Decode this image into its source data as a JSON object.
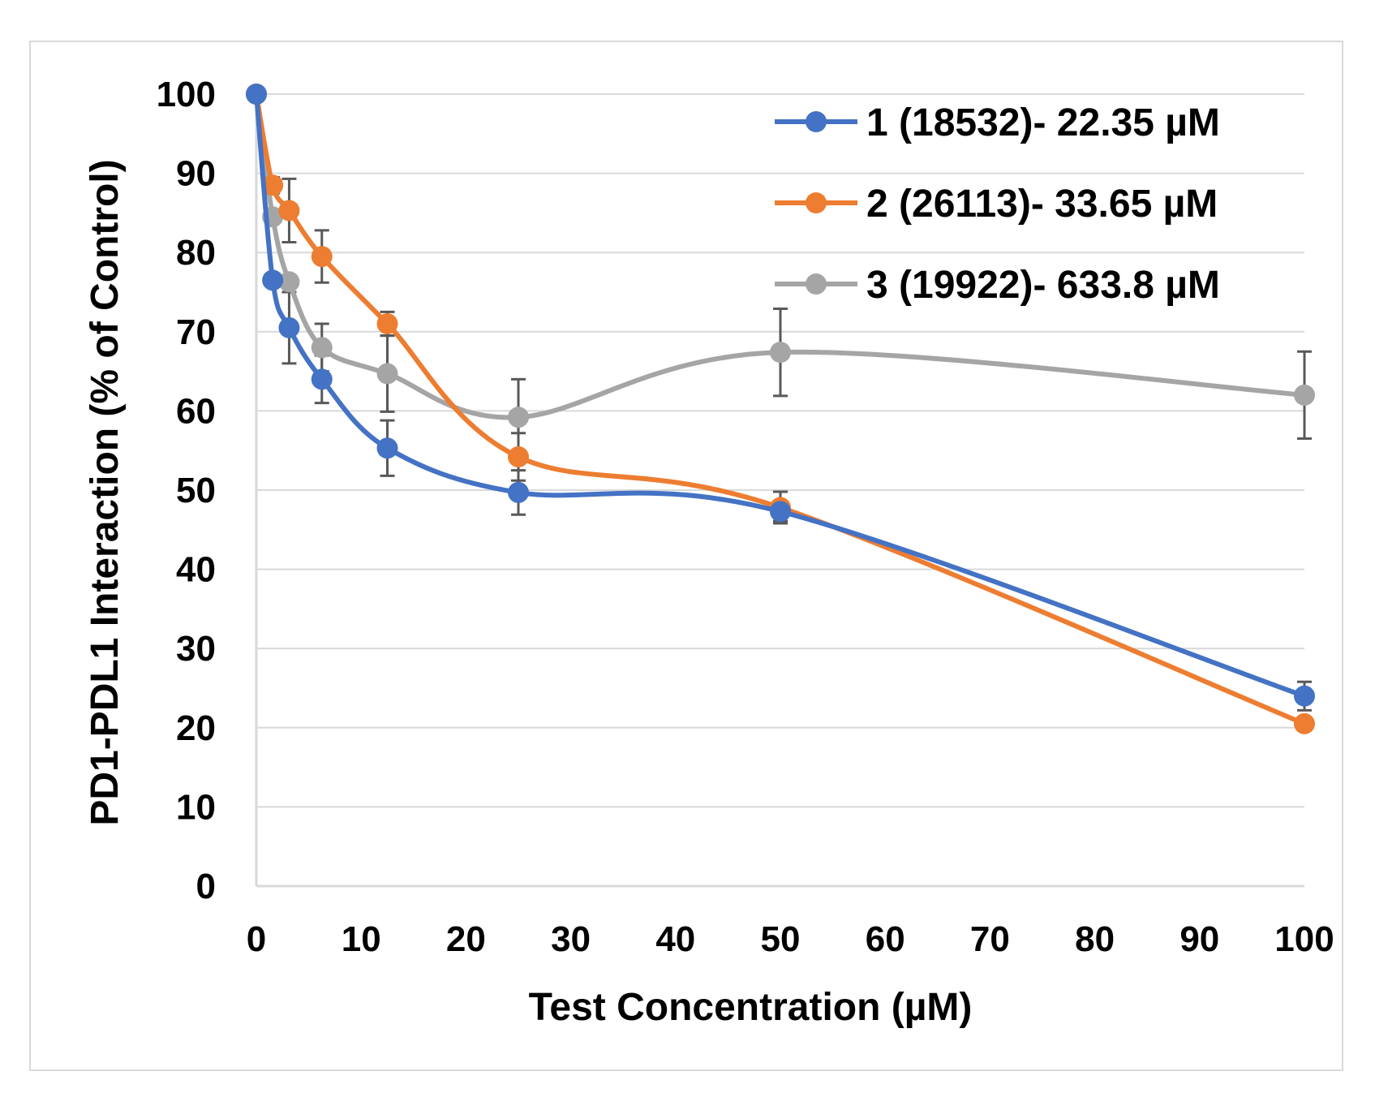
{
  "chart_data": {
    "type": "line",
    "xlabel": "Test Concentration (µM)",
    "ylabel": "PD1-PDL1 Interaction (% of Control)",
    "xlim": [
      0,
      100
    ],
    "ylim": [
      0,
      100
    ],
    "x_ticks": [
      "0",
      "10",
      "20",
      "30",
      "40",
      "50",
      "60",
      "70",
      "80",
      "90",
      "100"
    ],
    "y_ticks": [
      "0",
      "10",
      "20",
      "30",
      "40",
      "50",
      "60",
      "70",
      "80",
      "90",
      "100"
    ],
    "grid": "horizontal",
    "legend_position": "top-right",
    "series": [
      {
        "name": "1 (18532)- 22.35 µM",
        "color": "#4472c4",
        "x": [
          0,
          1.56,
          3.13,
          6.25,
          12.5,
          25,
          50,
          100
        ],
        "y": [
          100,
          76.5,
          70.5,
          64,
          55.3,
          49.7,
          47.3,
          24
        ],
        "err": [
          0,
          0,
          4.5,
          3,
          3.5,
          2.8,
          1.2,
          1.8
        ]
      },
      {
        "name": "2 (26113)- 33.65 µM",
        "color": "#ed7d31",
        "x": [
          0,
          1.56,
          3.13,
          6.25,
          12.5,
          25,
          50,
          100
        ],
        "y": [
          100,
          88.5,
          85.3,
          79.5,
          71,
          54.2,
          47.8,
          20.5
        ],
        "err": [
          0,
          1,
          4,
          3.3,
          1.5,
          3,
          2,
          0
        ]
      },
      {
        "name": "3 (19922)- 633.8 µM",
        "color": "#a5a5a5",
        "x": [
          0,
          1.56,
          3.13,
          6.25,
          12.5,
          25,
          50,
          100
        ],
        "y": [
          100,
          84.5,
          76.3,
          68,
          64.7,
          59.2,
          67.4,
          62
        ],
        "err": [
          0,
          0,
          0,
          3,
          4.8,
          4.8,
          5.5,
          5.5
        ]
      }
    ]
  }
}
